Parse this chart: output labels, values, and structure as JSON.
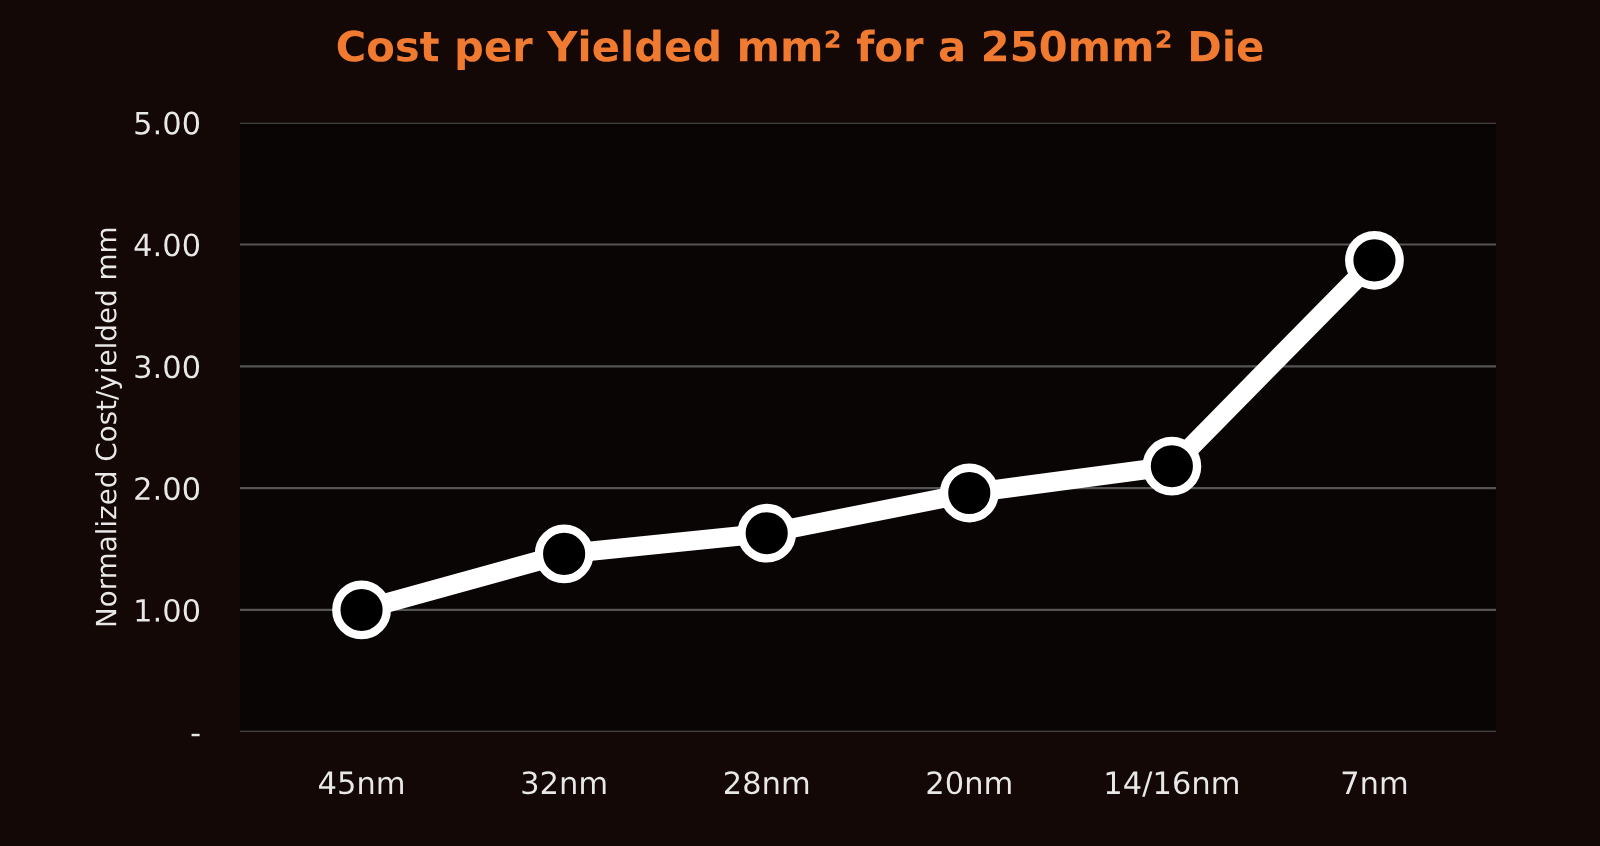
{
  "chart_data": {
    "type": "line",
    "title": "Cost per Yielded mm² for a 250mm² Die",
    "ylabel": "Normalized Cost/yielded mm",
    "categories": [
      "45nm",
      "32nm",
      "28nm",
      "20nm",
      "14/16nm",
      "7nm"
    ],
    "series": [
      {
        "color": "#ffffff",
        "values": [
          1.0,
          1.46,
          1.63,
          1.96,
          2.18,
          3.87
        ]
      }
    ],
    "ylim": [
      0,
      5
    ],
    "yticks": [
      {
        "value": 0,
        "label": "-"
      },
      {
        "value": 1,
        "label": "1.00"
      },
      {
        "value": 2,
        "label": "2.00"
      },
      {
        "value": 3,
        "label": "3.00"
      },
      {
        "value": 4,
        "label": "4.00"
      },
      {
        "value": 5,
        "label": "5.00"
      }
    ],
    "grid": "y",
    "marker": "circle",
    "line_style": "solid"
  }
}
